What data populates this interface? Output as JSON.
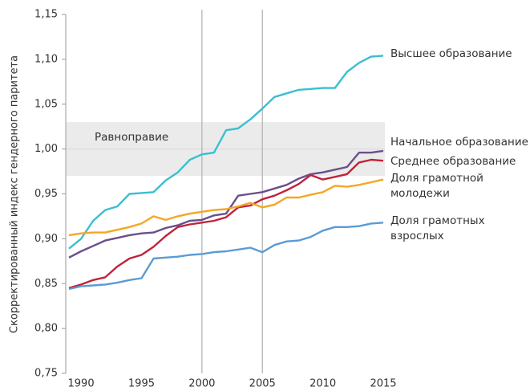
{
  "chart_data": {
    "type": "line",
    "y_label": "Скорректированный индекс гендерного паритета",
    "annotation": "Равноправие",
    "band": [
      0.97,
      1.03
    ],
    "reference_line": 1.0,
    "vlines": [
      2000,
      2005
    ],
    "x": [
      1989,
      1990,
      1991,
      1992,
      1993,
      1994,
      1995,
      1996,
      1997,
      1998,
      1999,
      2000,
      2001,
      2002,
      2003,
      2004,
      2005,
      2006,
      2007,
      2008,
      2009,
      2010,
      2011,
      2012,
      2013,
      2014,
      2015
    ],
    "xlim": [
      1989,
      2015
    ],
    "xticks": [
      1990,
      1995,
      2000,
      2005,
      2010,
      2015
    ],
    "ylim": [
      0.75,
      1.15
    ],
    "yticks": [
      {
        "value": 0.75,
        "label": "0,75"
      },
      {
        "value": 0.8,
        "label": "0,80"
      },
      {
        "value": 0.85,
        "label": "0,85"
      },
      {
        "value": 0.9,
        "label": "0,90"
      },
      {
        "value": 0.95,
        "label": "0,95"
      },
      {
        "value": 1.0,
        "label": "1,00"
      },
      {
        "value": 1.05,
        "label": "1,05"
      },
      {
        "value": 1.1,
        "label": "1,10"
      },
      {
        "value": 1.15,
        "label": "1,15"
      }
    ],
    "series": [
      {
        "name": "Высшее образование",
        "color": "#3bbfd0",
        "values": [
          0.889,
          0.9,
          0.92,
          0.932,
          0.936,
          0.95,
          0.951,
          0.952,
          0.965,
          0.974,
          0.988,
          0.994,
          0.996,
          1.021,
          1.023,
          1.033,
          1.045,
          1.058,
          1.062,
          1.066,
          1.067,
          1.068,
          1.068,
          1.086,
          1.096,
          1.103,
          1.104
        ]
      },
      {
        "name": "Начальное образование",
        "color": "#6b4e8e",
        "values": [
          0.879,
          0.886,
          0.892,
          0.898,
          0.901,
          0.904,
          0.906,
          0.907,
          0.912,
          0.915,
          0.92,
          0.921,
          0.926,
          0.928,
          0.948,
          0.95,
          0.952,
          0.956,
          0.96,
          0.967,
          0.972,
          0.974,
          0.977,
          0.98,
          0.996,
          0.996,
          0.998
        ]
      },
      {
        "name": "Среднее образование",
        "color": "#c0233a",
        "values": [
          0.845,
          0.849,
          0.854,
          0.857,
          0.869,
          0.878,
          0.882,
          0.891,
          0.903,
          0.913,
          0.916,
          0.918,
          0.92,
          0.924,
          0.935,
          0.937,
          0.944,
          0.948,
          0.954,
          0.961,
          0.971,
          0.966,
          0.969,
          0.972,
          0.985,
          0.988,
          0.987
        ]
      },
      {
        "name": "Доля грамотной молодежи",
        "color": "#f5a623",
        "values": [
          0.904,
          0.906,
          0.907,
          0.907,
          0.91,
          0.913,
          0.917,
          0.925,
          0.921,
          0.925,
          0.928,
          0.93,
          0.932,
          0.933,
          0.936,
          0.94,
          0.935,
          0.938,
          0.946,
          0.946,
          0.949,
          0.952,
          0.959,
          0.958,
          0.96,
          0.963,
          0.966
        ]
      },
      {
        "name": "Доля грамотных взрослых",
        "color": "#5b9bd5",
        "values": [
          0.844,
          0.847,
          0.848,
          0.849,
          0.851,
          0.854,
          0.856,
          0.878,
          0.879,
          0.88,
          0.882,
          0.883,
          0.885,
          0.886,
          0.888,
          0.89,
          0.885,
          0.893,
          0.897,
          0.898,
          0.902,
          0.909,
          0.913,
          0.913,
          0.914,
          0.917,
          0.918
        ]
      }
    ]
  }
}
